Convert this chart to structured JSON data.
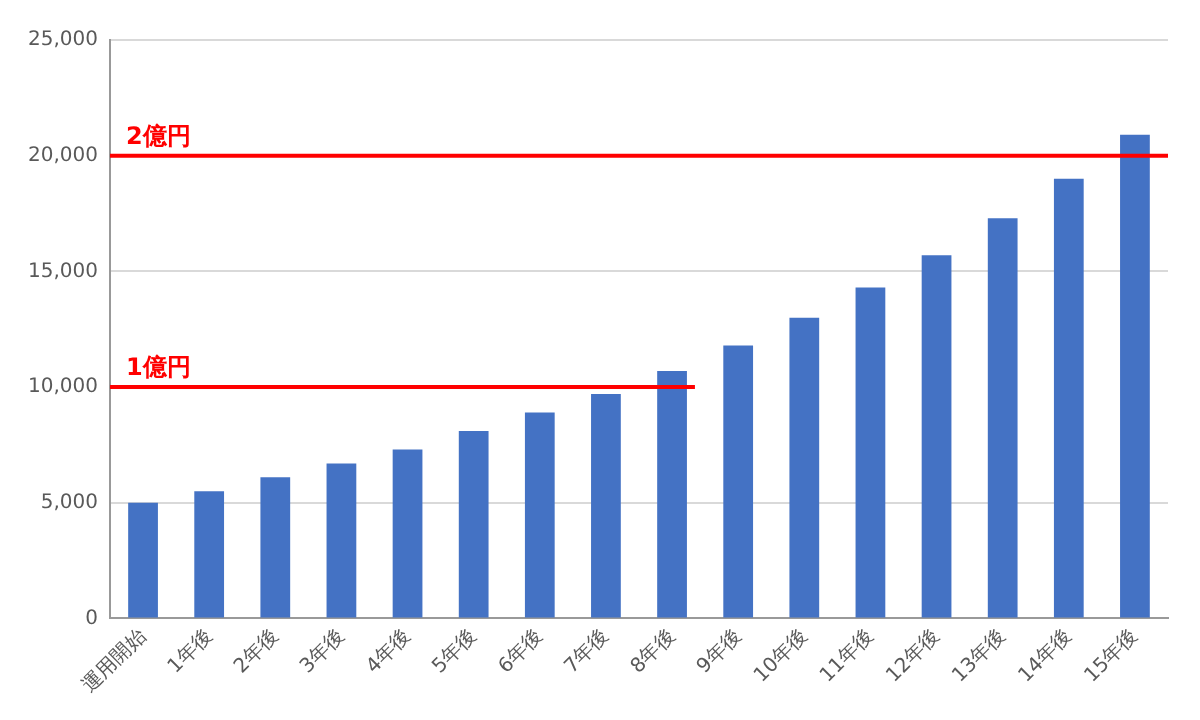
{
  "chart_data": {
    "type": "bar",
    "categories": [
      "運用開始",
      "1年後",
      "2年後",
      "3年後",
      "4年後",
      "5年後",
      "6年後",
      "7年後",
      "8年後",
      "9年後",
      "10年後",
      "11年後",
      "12年後",
      "13年後",
      "14年後",
      "15年後"
    ],
    "values": [
      5000,
      5500,
      6100,
      6700,
      7300,
      8100,
      8900,
      9700,
      10700,
      11800,
      13000,
      14300,
      15700,
      17300,
      19000,
      20900
    ],
    "color": "#4472c4",
    "ylim": [
      0,
      25000
    ],
    "yticks": [
      {
        "value": 0,
        "label": "0"
      },
      {
        "value": 5000,
        "label": "5,000"
      },
      {
        "value": 10000,
        "label": "10,000"
      },
      {
        "value": 15000,
        "label": "15,000"
      },
      {
        "value": 20000,
        "label": "20,000"
      },
      {
        "value": 25000,
        "label": "25,000"
      }
    ],
    "grid": "y",
    "legend": false,
    "ref_lines": [
      {
        "axis": "y",
        "value": 10000,
        "label": "1億円",
        "color": "#ff0000"
      },
      {
        "axis": "y",
        "value": 20000,
        "label": "2億円",
        "color": "#ff0000"
      }
    ]
  }
}
